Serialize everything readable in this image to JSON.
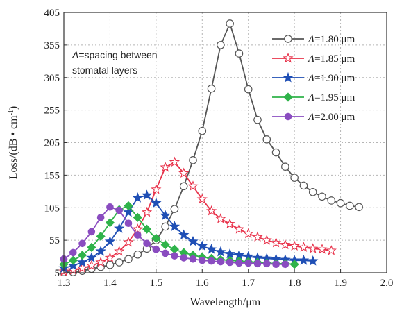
{
  "chart_data": {
    "type": "line",
    "xlabel": "Wavelength/μm",
    "ylabel": "Loss/(dB • cm",
    "ylabel_sup": "-1",
    "ylabel_close": ")",
    "xlim": [
      1.3,
      2.0
    ],
    "ylim": [
      5,
      405
    ],
    "x_ticks": [
      "1.3",
      "1.4",
      "1.5",
      "1.6",
      "1.7",
      "1.8",
      "1.9",
      "2.0"
    ],
    "y_ticks": [
      "5",
      "55",
      "105",
      "155",
      "205",
      "255",
      "305",
      "355",
      "405"
    ],
    "grid": true,
    "legend_position": "top-right",
    "annotation": {
      "symbol": "Λ",
      "line1": "=spacing between",
      "line2": "stomatal layers"
    },
    "series": [
      {
        "name_symbol": "Λ",
        "name_text": "=1.80 μm",
        "color": "#555555",
        "marker": "open-circle",
        "x": [
          1.3,
          1.32,
          1.34,
          1.36,
          1.38,
          1.4,
          1.42,
          1.44,
          1.46,
          1.48,
          1.5,
          1.52,
          1.54,
          1.56,
          1.58,
          1.6,
          1.62,
          1.64,
          1.66,
          1.68,
          1.7,
          1.72,
          1.74,
          1.76,
          1.78,
          1.8,
          1.82,
          1.84,
          1.86,
          1.88,
          1.9,
          1.92,
          1.94
        ],
        "y": [
          6,
          6,
          8,
          11,
          14,
          17,
          21,
          26,
          33,
          42,
          55,
          76,
          103,
          138,
          178,
          223,
          288,
          355,
          388,
          342,
          287,
          240,
          210,
          190,
          168,
          151,
          139,
          129,
          122,
          116,
          112,
          108,
          106
        ]
      },
      {
        "name_symbol": "Λ",
        "name_text": "=1.85 μm",
        "color": "#e8324a",
        "marker": "open-star",
        "x": [
          1.3,
          1.32,
          1.34,
          1.36,
          1.38,
          1.4,
          1.42,
          1.44,
          1.46,
          1.48,
          1.5,
          1.52,
          1.54,
          1.56,
          1.58,
          1.6,
          1.62,
          1.64,
          1.66,
          1.68,
          1.7,
          1.72,
          1.74,
          1.76,
          1.78,
          1.8,
          1.82,
          1.84,
          1.86,
          1.88
        ],
        "y": [
          7,
          9,
          12,
          16,
          21,
          28,
          38,
          52,
          72,
          98,
          133,
          167,
          175,
          158,
          138,
          118,
          100,
          88,
          80,
          72,
          65,
          60,
          55,
          51,
          48,
          46,
          44,
          42,
          41,
          39
        ]
      },
      {
        "name_symbol": "Λ",
        "name_text": "=1.90 μm",
        "color": "#1f4fb5",
        "marker": "star",
        "x": [
          1.3,
          1.32,
          1.34,
          1.36,
          1.38,
          1.4,
          1.42,
          1.44,
          1.46,
          1.48,
          1.5,
          1.52,
          1.54,
          1.56,
          1.58,
          1.6,
          1.62,
          1.64,
          1.66,
          1.68,
          1.7,
          1.72,
          1.74,
          1.76,
          1.78,
          1.8,
          1.82,
          1.84
        ],
        "y": [
          12,
          16,
          21,
          28,
          38,
          53,
          73,
          98,
          120,
          124,
          112,
          93,
          76,
          63,
          53,
          46,
          41,
          37,
          34,
          32,
          30,
          28,
          27,
          26,
          25,
          24,
          24,
          23
        ]
      },
      {
        "name_symbol": "Λ",
        "name_text": "=1.95 μm",
        "color": "#2fb34a",
        "marker": "diamond",
        "x": [
          1.3,
          1.32,
          1.34,
          1.36,
          1.38,
          1.4,
          1.42,
          1.44,
          1.46,
          1.48,
          1.5,
          1.52,
          1.54,
          1.56,
          1.58,
          1.6,
          1.62,
          1.64,
          1.66,
          1.68,
          1.7,
          1.72,
          1.74,
          1.76,
          1.78,
          1.8
        ],
        "y": [
          18,
          24,
          32,
          44,
          61,
          82,
          102,
          108,
          90,
          72,
          58,
          48,
          41,
          36,
          32,
          29,
          27,
          25,
          24,
          23,
          22,
          21,
          20,
          19,
          19,
          18
        ]
      },
      {
        "name_symbol": "Λ",
        "name_text": "=2.00 μm",
        "color": "#8a4cc0",
        "marker": "circle",
        "x": [
          1.3,
          1.32,
          1.34,
          1.36,
          1.38,
          1.4,
          1.42,
          1.44,
          1.46,
          1.48,
          1.5,
          1.52,
          1.54,
          1.56,
          1.58,
          1.6,
          1.62,
          1.64,
          1.66,
          1.68,
          1.7,
          1.72,
          1.74,
          1.76,
          1.78
        ],
        "y": [
          26,
          36,
          50,
          68,
          90,
          106,
          101,
          81,
          63,
          50,
          41,
          35,
          31,
          28,
          26,
          24,
          23,
          22,
          21,
          20,
          20,
          19,
          19,
          18,
          18
        ]
      }
    ]
  }
}
